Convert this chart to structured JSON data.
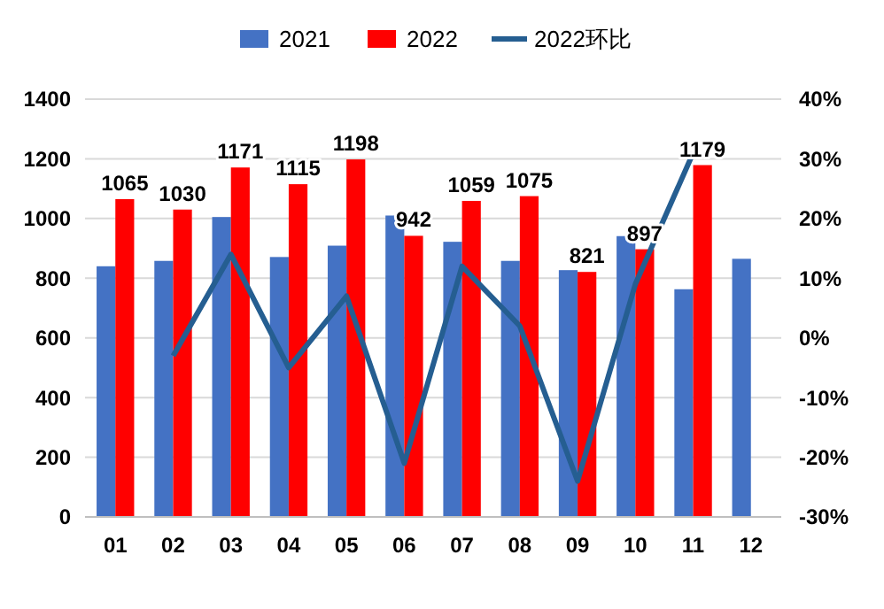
{
  "chart_data": {
    "type": "bar",
    "categories": [
      "01",
      "02",
      "03",
      "04",
      "05",
      "06",
      "07",
      "08",
      "09",
      "10",
      "11",
      "12"
    ],
    "series": [
      {
        "name": "2021",
        "color": "#4472c4",
        "values": [
          840,
          858,
          1005,
          871,
          909,
          1010,
          922,
          858,
          827,
          941,
          763,
          865
        ]
      },
      {
        "name": "2022",
        "color": "#ff0000",
        "values": [
          1065,
          1030,
          1171,
          1115,
          1198,
          942,
          1059,
          1075,
          821,
          897,
          1179,
          null
        ],
        "value_labels": [
          "1065",
          "1030",
          "1171",
          "1115",
          "1198",
          "942",
          "1059",
          "1075",
          "821",
          "897",
          "1179",
          null
        ]
      },
      {
        "name": "2022环比",
        "type": "line",
        "axis": "y2",
        "color": "#255e91",
        "values": [
          null,
          -3,
          14,
          -5,
          7,
          -21,
          12,
          2,
          -24,
          9,
          31,
          null
        ]
      }
    ],
    "ylim": [
      0,
      1400
    ],
    "yticks": [
      0,
      200,
      400,
      600,
      800,
      1000,
      1200,
      1400
    ],
    "y2lim": [
      -30,
      40
    ],
    "y2ticks": [
      {
        "value": -30,
        "label": "-30%"
      },
      {
        "value": -20,
        "label": "-20%"
      },
      {
        "value": -10,
        "label": "-10%"
      },
      {
        "value": 0,
        "label": "0%"
      },
      {
        "value": 10,
        "label": "10%"
      },
      {
        "value": 20,
        "label": "20%"
      },
      {
        "value": 30,
        "label": "30%"
      },
      {
        "value": 40,
        "label": "40%"
      }
    ],
    "grid": "y",
    "legend": "top",
    "marker": "none",
    "line_style": "solid"
  }
}
